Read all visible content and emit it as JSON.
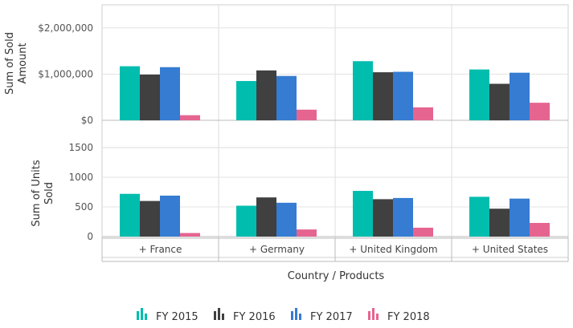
{
  "chart_data": {
    "type": "bar",
    "xlabel": "Country / Products",
    "categories": [
      "+ France",
      "+ Germany",
      "+ United Kingdom",
      "+ United States"
    ],
    "legend": {
      "position": "bottom"
    },
    "colors": {
      "FY 2015": "#00bdae",
      "FY 2016": "#404041",
      "FY 2017": "#357cd2",
      "FY 2018": "#e56590"
    },
    "series_names": [
      "FY 2015",
      "FY 2016",
      "FY 2017",
      "FY 2018"
    ],
    "panels": [
      {
        "ylabel": "Sum of Sold Amount",
        "ylim": [
          0,
          2500000
        ],
        "yticks": [
          0,
          1000000,
          2000000
        ],
        "ytick_labels": [
          "$0",
          "$1,000,000",
          "$2,000,000"
        ],
        "series": [
          {
            "name": "FY 2015",
            "values": [
              1170000,
              850000,
              1280000,
              1100000
            ]
          },
          {
            "name": "FY 2016",
            "values": [
              990000,
              1080000,
              1040000,
              790000
            ]
          },
          {
            "name": "FY 2017",
            "values": [
              1150000,
              960000,
              1050000,
              1030000
            ]
          },
          {
            "name": "FY 2018",
            "values": [
              110000,
              230000,
              280000,
              380000
            ]
          }
        ]
      },
      {
        "ylabel": "Sum of Units Sold",
        "ylim": [
          0,
          1500
        ],
        "yticks": [
          0,
          500,
          1000,
          1500
        ],
        "ytick_labels": [
          "0",
          "500",
          "1000",
          "1500"
        ],
        "series": [
          {
            "name": "FY 2015",
            "values": [
              720,
              520,
              770,
              670
            ]
          },
          {
            "name": "FY 2016",
            "values": [
              600,
              660,
              630,
              470
            ]
          },
          {
            "name": "FY 2017",
            "values": [
              690,
              570,
              650,
              640
            ]
          },
          {
            "name": "FY 2018",
            "values": [
              60,
              120,
              150,
              230
            ]
          }
        ]
      }
    ]
  }
}
